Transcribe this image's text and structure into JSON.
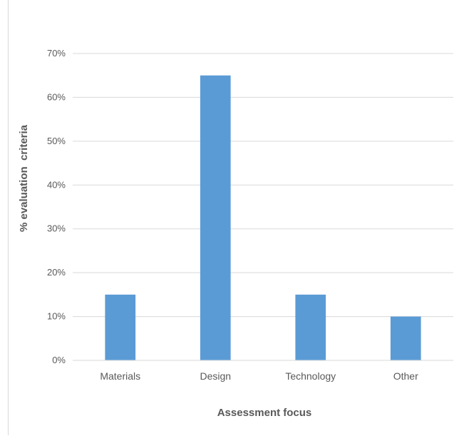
{
  "chart_data": {
    "type": "bar",
    "categories": [
      "Materials",
      "Design",
      "Technology",
      "Other"
    ],
    "values": [
      15,
      65,
      15,
      10
    ],
    "y_tick_labels": [
      "0%",
      "10%",
      "20%",
      "30%",
      "40%",
      "50%",
      "60%",
      "70%"
    ],
    "xlabel": "Assessment focus",
    "ylabel": "% evaluation  criteria",
    "ylim": [
      0,
      70
    ],
    "y_unit": "%",
    "grid": true,
    "legend": "none",
    "bar_color": "#5b9bd5",
    "grid_color": "#d9d9d9"
  }
}
